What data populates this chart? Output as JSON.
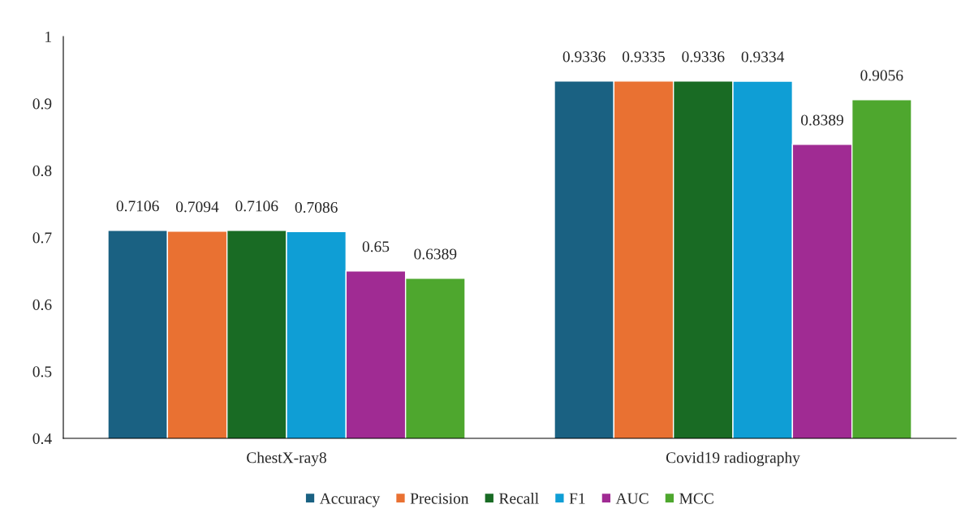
{
  "chart_data": {
    "type": "bar",
    "categories": [
      "ChestX-ray8",
      "Covid19 radiography"
    ],
    "series": [
      {
        "name": "Accuracy",
        "color": "#1a6182",
        "values": [
          0.7106,
          0.9336
        ]
      },
      {
        "name": "Precision",
        "color": "#e97132",
        "values": [
          0.7094,
          0.9335
        ]
      },
      {
        "name": "Recall",
        "color": "#196b24",
        "values": [
          0.7106,
          0.9336
        ]
      },
      {
        "name": "F1",
        "color": "#0f9ed5",
        "values": [
          0.7086,
          0.9334
        ]
      },
      {
        "name": "AUC",
        "color": "#a02b93",
        "values": [
          0.65,
          0.8389
        ]
      },
      {
        "name": "MCC",
        "color": "#4ea72e",
        "values": [
          0.6389,
          0.9056
        ]
      }
    ],
    "ylim": [
      0.4,
      1
    ],
    "yticks": [
      0.4,
      0.5,
      0.6,
      0.7,
      0.8,
      0.9,
      1
    ],
    "data_labels": true,
    "grid": false,
    "legend": "bottom"
  }
}
